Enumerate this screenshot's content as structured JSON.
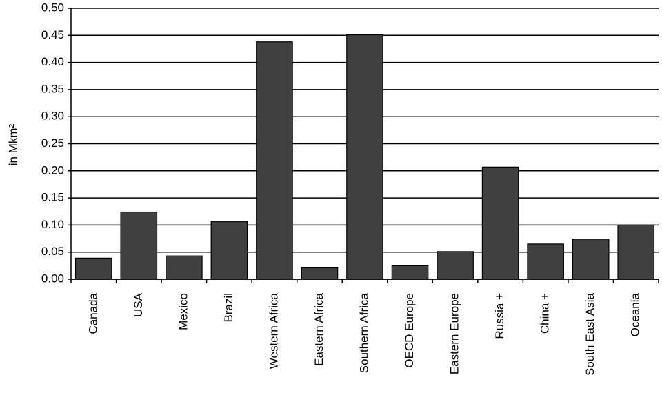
{
  "chart_data": {
    "type": "bar",
    "y_label": "in Mkm²",
    "categories": [
      "Canada",
      "USA",
      "Mexico",
      "Brazil",
      "Western Africa",
      "Eastern Africa",
      "Southern Africa",
      "OECD Europe",
      "Eastern Europe",
      "Russia +",
      "China +",
      "South East Asia",
      "Oceania"
    ],
    "values": [
      0.039,
      0.124,
      0.043,
      0.106,
      0.438,
      0.021,
      0.451,
      0.025,
      0.051,
      0.207,
      0.065,
      0.074,
      0.1
    ],
    "color": "#404040",
    "ylim": [
      0,
      0.5
    ],
    "yticks": [
      {
        "value": 0,
        "label": "0.00"
      },
      0.05,
      {
        "value": 0.1,
        "label": "0.10"
      },
      0.15,
      {
        "value": 0.2,
        "label": "0.20"
      },
      0.25,
      {
        "value": 0.3,
        "label": "0.30"
      },
      0.35,
      {
        "value": 0.4,
        "label": "0.40"
      },
      0.45,
      {
        "value": 0.5,
        "label": "0.50"
      }
    ],
    "grid": true
  }
}
